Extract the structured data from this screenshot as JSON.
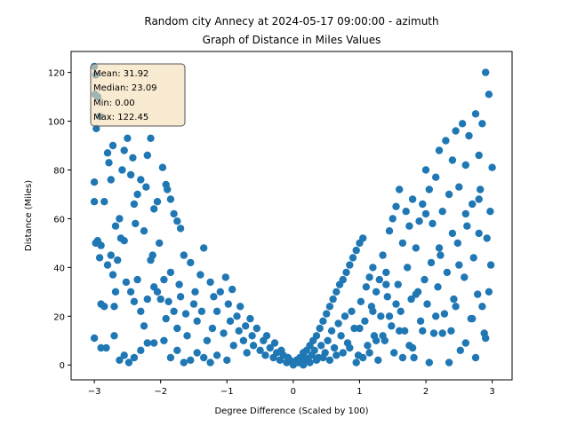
{
  "chart_data": {
    "type": "scatter",
    "title": "Random city Annecy at 2024-05-17 09:00:00  - azimuth",
    "subtitle": "Graph of Distance in Miles Values",
    "xlabel": "Degree Difference (Scaled by 100)",
    "ylabel": "Distance (Miles)",
    "xlim": [
      -3.35,
      3.3
    ],
    "ylim": [
      -6.1,
      128.6
    ],
    "xticks": [
      -3,
      -2,
      -1,
      0,
      1,
      2,
      3
    ],
    "yticks": [
      0,
      20,
      40,
      60,
      80,
      100,
      120
    ],
    "grid": false,
    "marker_color": "#1f77b4",
    "stats_box": {
      "mean": "Mean: 31.92",
      "median": "Median: 23.09",
      "min": "Min: 0.00",
      "max": "Max: 122.45",
      "placement": "top-left",
      "background": "#f5deb3"
    },
    "points": [
      [
        -3.0,
        122.45
      ],
      [
        -2.98,
        119
      ],
      [
        -2.99,
        111
      ],
      [
        -2.95,
        110
      ],
      [
        -2.92,
        102
      ],
      [
        -2.97,
        97
      ],
      [
        -3.0,
        75
      ],
      [
        -3.0,
        67
      ],
      [
        -2.85,
        67
      ],
      [
        -2.8,
        87
      ],
      [
        -2.78,
        83
      ],
      [
        -2.72,
        90
      ],
      [
        -2.75,
        76
      ],
      [
        -2.98,
        50
      ],
      [
        -2.95,
        51
      ],
      [
        -2.9,
        49
      ],
      [
        -2.92,
        44
      ],
      [
        -2.8,
        41
      ],
      [
        -2.75,
        45
      ],
      [
        -2.72,
        37
      ],
      [
        -2.68,
        57
      ],
      [
        -2.62,
        60
      ],
      [
        -2.6,
        52
      ],
      [
        -2.55,
        51
      ],
      [
        -2.65,
        43
      ],
      [
        -2.58,
        80
      ],
      [
        -2.55,
        88
      ],
      [
        -2.5,
        93
      ],
      [
        -2.45,
        78
      ],
      [
        -2.42,
        85
      ],
      [
        -2.4,
        66
      ],
      [
        -2.35,
        70
      ],
      [
        -2.3,
        76
      ],
      [
        -2.38,
        58
      ],
      [
        -2.25,
        55
      ],
      [
        -2.22,
        73
      ],
      [
        -2.2,
        86
      ],
      [
        -2.15,
        93
      ],
      [
        -2.1,
        64
      ],
      [
        -2.05,
        67
      ],
      [
        -2.02,
        50
      ],
      [
        -1.97,
        81
      ],
      [
        -1.92,
        74
      ],
      [
        -1.9,
        72
      ],
      [
        -1.85,
        68
      ],
      [
        -1.8,
        62
      ],
      [
        -1.75,
        59
      ],
      [
        -1.7,
        56
      ],
      [
        -2.9,
        25
      ],
      [
        -2.85,
        24
      ],
      [
        -2.7,
        24
      ],
      [
        -2.68,
        30
      ],
      [
        -2.52,
        34
      ],
      [
        -2.45,
        30
      ],
      [
        -2.4,
        26
      ],
      [
        -2.35,
        35
      ],
      [
        -2.3,
        22
      ],
      [
        -2.25,
        16
      ],
      [
        -2.2,
        27
      ],
      [
        -2.15,
        43
      ],
      [
        -2.12,
        45
      ],
      [
        -2.1,
        32
      ],
      [
        -2.05,
        30
      ],
      [
        -2.0,
        27
      ],
      [
        -1.95,
        35
      ],
      [
        -1.92,
        19
      ],
      [
        -1.88,
        26
      ],
      [
        -1.85,
        38
      ],
      [
        -1.8,
        22
      ],
      [
        -1.75,
        15
      ],
      [
        -1.72,
        33
      ],
      [
        -1.7,
        28
      ],
      [
        -1.65,
        45
      ],
      [
        -1.62,
        21
      ],
      [
        -1.6,
        12
      ],
      [
        -1.55,
        42
      ],
      [
        -1.5,
        25
      ],
      [
        -1.48,
        30
      ],
      [
        -1.45,
        18
      ],
      [
        -1.4,
        37
      ],
      [
        -1.38,
        22
      ],
      [
        -1.35,
        48
      ],
      [
        -1.3,
        10
      ],
      [
        -1.25,
        34
      ],
      [
        -1.22,
        15
      ],
      [
        -1.2,
        28
      ],
      [
        -1.15,
        22
      ],
      [
        -1.1,
        30
      ],
      [
        -1.05,
        13
      ],
      [
        -1.02,
        36
      ],
      [
        -0.98,
        25
      ],
      [
        -0.95,
        18
      ],
      [
        -0.92,
        31
      ],
      [
        -0.9,
        8
      ],
      [
        -0.85,
        20
      ],
      [
        -0.82,
        14
      ],
      [
        -0.8,
        24
      ],
      [
        -0.75,
        10
      ],
      [
        -0.72,
        16
      ],
      [
        -0.7,
        5
      ],
      [
        -0.65,
        19
      ],
      [
        -0.62,
        12
      ],
      [
        -0.6,
        8
      ],
      [
        -0.55,
        15
      ],
      [
        -0.5,
        6
      ],
      [
        -0.45,
        10
      ],
      [
        -0.42,
        4
      ],
      [
        -0.4,
        12
      ],
      [
        -0.35,
        7
      ],
      [
        -0.3,
        3
      ],
      [
        -0.28,
        9
      ],
      [
        -0.25,
        5
      ],
      [
        -0.2,
        2
      ],
      [
        -0.18,
        6
      ],
      [
        -0.15,
        4
      ],
      [
        -0.1,
        1
      ],
      [
        -0.08,
        3
      ],
      [
        -0.05,
        2
      ],
      [
        -3.0,
        11
      ],
      [
        -2.9,
        7
      ],
      [
        -2.82,
        7
      ],
      [
        -2.7,
        12
      ],
      [
        -2.62,
        2
      ],
      [
        -2.55,
        4
      ],
      [
        -2.48,
        1
      ],
      [
        -2.4,
        3
      ],
      [
        -2.3,
        6
      ],
      [
        -2.2,
        9
      ],
      [
        -2.1,
        9
      ],
      [
        -1.95,
        10
      ],
      [
        -1.85,
        3
      ],
      [
        -1.75,
        6
      ],
      [
        -1.65,
        1
      ],
      [
        -1.55,
        2
      ],
      [
        -1.45,
        5
      ],
      [
        -1.35,
        3
      ],
      [
        -1.25,
        1
      ],
      [
        -1.15,
        4
      ],
      [
        -1.0,
        2
      ],
      [
        0.0,
        0
      ],
      [
        0.02,
        1
      ],
      [
        0.05,
        2
      ],
      [
        0.08,
        1
      ],
      [
        0.1,
        3
      ],
      [
        0.12,
        2
      ],
      [
        0.15,
        5
      ],
      [
        0.18,
        3
      ],
      [
        0.2,
        6
      ],
      [
        0.22,
        2
      ],
      [
        0.25,
        8
      ],
      [
        0.28,
        4
      ],
      [
        0.3,
        10
      ],
      [
        0.32,
        6
      ],
      [
        0.35,
        12
      ],
      [
        0.38,
        3
      ],
      [
        0.4,
        15
      ],
      [
        0.42,
        8
      ],
      [
        0.45,
        18
      ],
      [
        0.48,
        5
      ],
      [
        0.5,
        21
      ],
      [
        0.52,
        10
      ],
      [
        0.55,
        24
      ],
      [
        0.58,
        14
      ],
      [
        0.6,
        27
      ],
      [
        0.62,
        7
      ],
      [
        0.65,
        30
      ],
      [
        0.68,
        17
      ],
      [
        0.7,
        33
      ],
      [
        0.72,
        12
      ],
      [
        0.75,
        35
      ],
      [
        0.78,
        20
      ],
      [
        0.8,
        38
      ],
      [
        0.82,
        9
      ],
      [
        0.85,
        41
      ],
      [
        0.88,
        22
      ],
      [
        0.9,
        44
      ],
      [
        0.92,
        15
      ],
      [
        0.95,
        47
      ],
      [
        0.98,
        4
      ],
      [
        1.0,
        50
      ],
      [
        1.02,
        26
      ],
      [
        1.05,
        52
      ],
      [
        1.08,
        18
      ],
      [
        1.1,
        32
      ],
      [
        1.12,
        8
      ],
      [
        1.15,
        36
      ],
      [
        1.18,
        24
      ],
      [
        1.2,
        40
      ],
      [
        1.22,
        12
      ],
      [
        1.25,
        30
      ],
      [
        1.28,
        2
      ],
      [
        1.3,
        35
      ],
      [
        1.32,
        20
      ],
      [
        1.35,
        45
      ],
      [
        1.38,
        10
      ],
      [
        1.4,
        38
      ],
      [
        1.42,
        28
      ],
      [
        1.45,
        55
      ],
      [
        1.48,
        16
      ],
      [
        1.5,
        60
      ],
      [
        1.52,
        5
      ],
      [
        1.55,
        65
      ],
      [
        1.58,
        33
      ],
      [
        1.6,
        72
      ],
      [
        1.62,
        22
      ],
      [
        1.65,
        50
      ],
      [
        1.68,
        14
      ],
      [
        1.7,
        63
      ],
      [
        1.72,
        40
      ],
      [
        1.75,
        57
      ],
      [
        1.78,
        27
      ],
      [
        1.8,
        68
      ],
      [
        1.82,
        3
      ],
      [
        1.85,
        48
      ],
      [
        1.88,
        30
      ],
      [
        1.9,
        59
      ],
      [
        1.92,
        18
      ],
      [
        1.95,
        66
      ],
      [
        1.98,
        35
      ],
      [
        2.0,
        80
      ],
      [
        2.02,
        25
      ],
      [
        2.05,
        72
      ],
      [
        2.08,
        42
      ],
      [
        2.1,
        58
      ],
      [
        2.12,
        13
      ],
      [
        2.15,
        77
      ],
      [
        2.18,
        32
      ],
      [
        2.2,
        88
      ],
      [
        2.22,
        45
      ],
      [
        2.25,
        63
      ],
      [
        2.28,
        21
      ],
      [
        2.3,
        92
      ],
      [
        2.32,
        38
      ],
      [
        2.35,
        70
      ],
      [
        2.38,
        14
      ],
      [
        2.4,
        84
      ],
      [
        2.42,
        27
      ],
      [
        2.45,
        96
      ],
      [
        2.48,
        50
      ],
      [
        2.5,
        73
      ],
      [
        2.52,
        6
      ],
      [
        2.55,
        99
      ],
      [
        2.58,
        36
      ],
      [
        2.6,
        82
      ],
      [
        2.62,
        57
      ],
      [
        2.65,
        94
      ],
      [
        2.68,
        19
      ],
      [
        2.7,
        66
      ],
      [
        2.72,
        44
      ],
      [
        2.75,
        103
      ],
      [
        2.78,
        29
      ],
      [
        2.8,
        86
      ],
      [
        2.82,
        72
      ],
      [
        2.85,
        99
      ],
      [
        2.88,
        13
      ],
      [
        2.9,
        120
      ],
      [
        2.92,
        52
      ],
      [
        2.95,
        111
      ],
      [
        2.97,
        63
      ],
      [
        3.0,
        81
      ],
      [
        2.98,
        41
      ],
      [
        2.95,
        30
      ],
      [
        2.9,
        11
      ],
      [
        2.85,
        24
      ],
      [
        2.8,
        54
      ],
      [
        2.75,
        3
      ],
      [
        2.7,
        19
      ],
      [
        2.6,
        9
      ],
      [
        2.5,
        41
      ],
      [
        2.45,
        24
      ],
      [
        2.35,
        1
      ],
      [
        2.25,
        13
      ],
      [
        2.15,
        20
      ],
      [
        2.05,
        1
      ],
      [
        1.95,
        14
      ],
      [
        1.85,
        29
      ],
      [
        1.75,
        8
      ],
      [
        1.65,
        3
      ],
      [
        1.55,
        25
      ],
      [
        1.45,
        20
      ],
      [
        1.35,
        12
      ],
      [
        1.25,
        10
      ],
      [
        1.15,
        5
      ],
      [
        1.05,
        3
      ],
      [
        0.95,
        1
      ],
      [
        0.85,
        7
      ],
      [
        0.75,
        5
      ],
      [
        0.65,
        4
      ],
      [
        0.55,
        2
      ],
      [
        0.45,
        3
      ],
      [
        0.35,
        2
      ],
      [
        0.25,
        1
      ],
      [
        0.15,
        0
      ],
      [
        1.0,
        15
      ],
      [
        1.2,
        22
      ],
      [
        1.4,
        33
      ],
      [
        1.6,
        14
      ],
      [
        1.8,
        7
      ],
      [
        2.0,
        62
      ],
      [
        2.2,
        48
      ],
      [
        2.4,
        54
      ],
      [
        2.6,
        62
      ],
      [
        2.8,
        68
      ]
    ]
  }
}
